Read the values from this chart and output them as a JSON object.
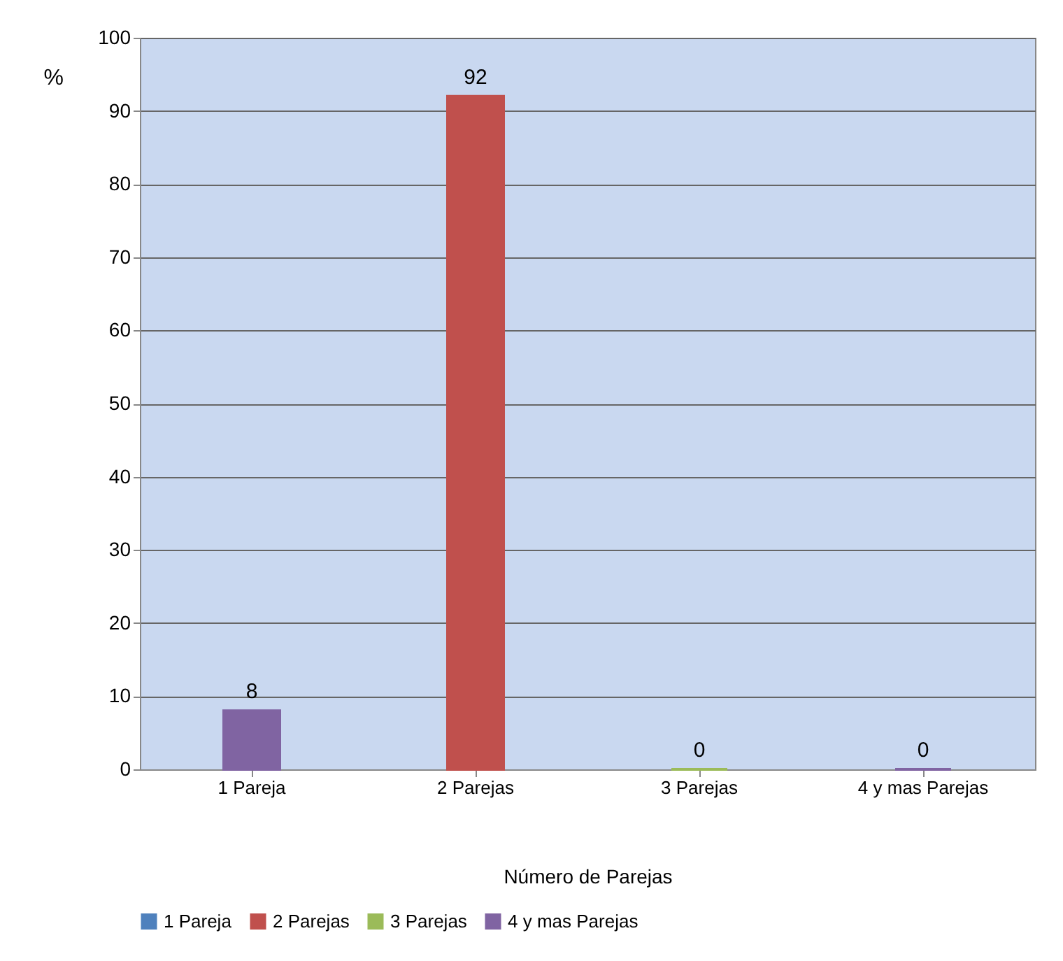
{
  "chart_data": {
    "type": "bar",
    "xlabel": "Número de Parejas",
    "ylabel": "%",
    "categories": [
      "1 Pareja",
      "2 Parejas",
      "3 Parejas",
      "4 y mas Parejas"
    ],
    "series": [
      {
        "name": "1 Pareja",
        "color": "#4f81bd",
        "values": [
          null,
          null,
          null,
          null
        ]
      },
      {
        "name": "2 Parejas",
        "color": "#c0504d",
        "values": [
          null,
          92,
          null,
          null
        ]
      },
      {
        "name": "3 Parejas",
        "color": "#9bbb59",
        "values": [
          null,
          null,
          0,
          null
        ]
      },
      {
        "name": "4 y mas Parejas",
        "color": "#8064a2",
        "values": [
          8,
          null,
          null,
          0
        ]
      }
    ],
    "ylim": [
      0,
      100
    ],
    "yticks": [
      0,
      10,
      20,
      30,
      40,
      50,
      60,
      70,
      80,
      90,
      100
    ],
    "grid": "y",
    "legend": "bottom",
    "data_labels": true
  }
}
